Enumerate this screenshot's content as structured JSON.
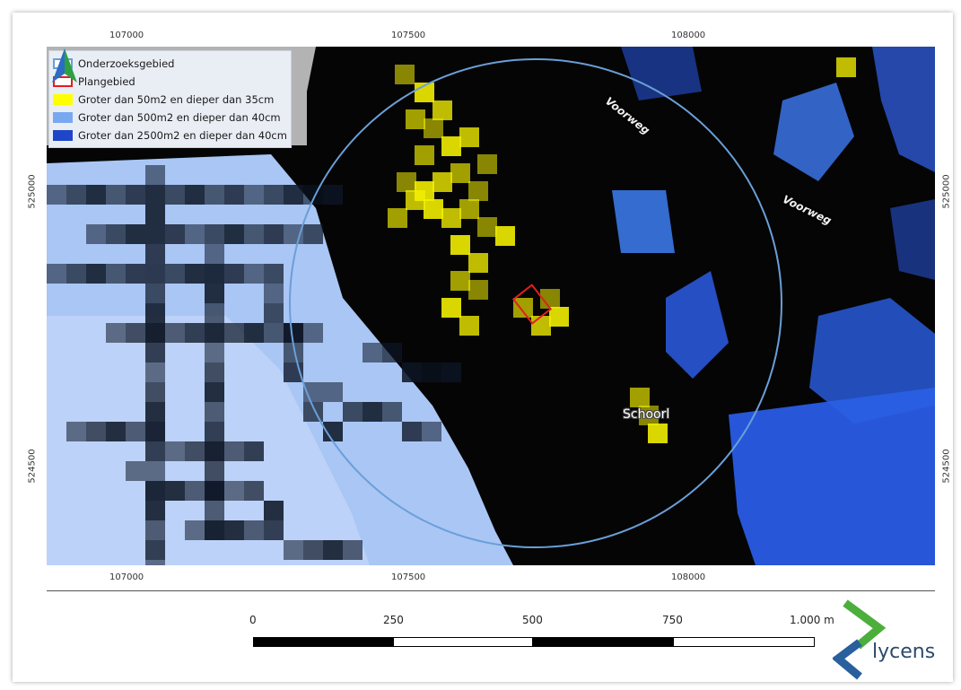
{
  "axes": {
    "top_ticks": [
      "107000",
      "107500",
      "108000"
    ],
    "bottom_ticks": [
      "107000",
      "107500",
      "108000"
    ],
    "left_ticks": [
      "525000",
      "524500"
    ],
    "right_ticks": [
      "525000",
      "524500"
    ]
  },
  "legend": {
    "items": [
      {
        "label": "Onderzoeksgebied",
        "color": "#6a9fd8",
        "style": "outline"
      },
      {
        "label": "Plangebied",
        "color": "#e02020",
        "style": "outline"
      },
      {
        "label": "Groter dan 50m2 en dieper dan 35cm",
        "color": "#ffff00",
        "style": "fill"
      },
      {
        "label": "Groter dan 500m2 en dieper dan 40cm",
        "color": "#78a8f0",
        "style": "fill"
      },
      {
        "label": "Groter dan 2500m2 en dieper dan 40cm",
        "color": "#1f45c8",
        "style": "fill"
      }
    ]
  },
  "labels": {
    "roads": [
      "Voorweg",
      "Voorweg"
    ],
    "place": "Schoorl"
  },
  "scalebar": {
    "labels": [
      "0",
      "250",
      "500",
      "750",
      "1.000 m"
    ]
  },
  "logo": {
    "text": "lycens",
    "colors": {
      "green": "#4caf3c",
      "blue": "#2a5f9e"
    }
  },
  "north_arrow": {
    "icon": "north-arrow-icon",
    "colors": [
      "#2ea043",
      "#2b6cc4"
    ]
  }
}
